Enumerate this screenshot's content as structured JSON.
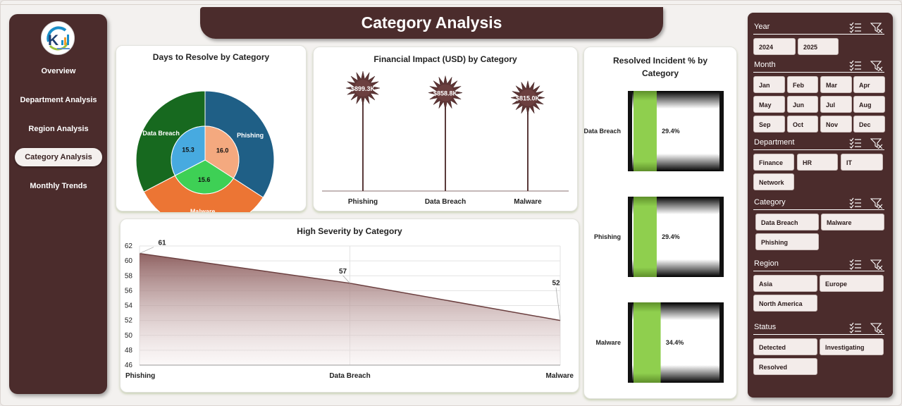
{
  "page": {
    "title": "Category Analysis"
  },
  "nav": {
    "items": [
      {
        "label": "Overview",
        "active": false
      },
      {
        "label": "Department Analysis",
        "active": false
      },
      {
        "label": "Region Analysis",
        "active": false
      },
      {
        "label": "Category Analysis",
        "active": true
      },
      {
        "label": "Monthly Trends",
        "active": false
      }
    ]
  },
  "colors": {
    "accent": "#4b2c2c",
    "panel": "#ffffff",
    "highlight": "#8fcf4e"
  },
  "charts": {
    "days_to_resolve": {
      "title": "Days to Resolve by Category",
      "chart_data": {
        "type": "pie",
        "outer": [
          {
            "label": "Phishing",
            "value": 16.0,
            "color": "#1f5f86"
          },
          {
            "label": "Malware",
            "value": 15.6,
            "color": "#ec7534"
          },
          {
            "label": "Data Breach",
            "value": 15.3,
            "color": "#17691f"
          }
        ],
        "inner": [
          {
            "label": "16.0",
            "value": 16.0,
            "color": "#f4a97f"
          },
          {
            "label": "15.6",
            "value": 15.6,
            "color": "#3ed055"
          },
          {
            "label": "15.3",
            "value": 15.3,
            "color": "#47aae0"
          }
        ]
      }
    },
    "financial_impact": {
      "title": "Financial Impact (USD) by Category",
      "chart_data": {
        "type": "bar",
        "categories": [
          "Phishing",
          "Data Breach",
          "Malware"
        ],
        "values": [
          899.3,
          858.8,
          815.0
        ],
        "labels": [
          "$899.3K",
          "$858.8K",
          "$815.0K"
        ],
        "ylim": [
          0,
          899.3
        ]
      }
    },
    "high_severity": {
      "title": "High Severity by Category",
      "chart_data": {
        "type": "area",
        "categories": [
          "Phishing",
          "Data Breach",
          "Malware"
        ],
        "values": [
          61,
          57,
          52
        ],
        "yticks": [
          "46",
          "48",
          "50",
          "52",
          "54",
          "56",
          "58",
          "60",
          "62"
        ],
        "ylim": [
          46,
          62
        ],
        "grid": true
      }
    },
    "resolved_pct": {
      "title_line1": "Resolved Incident % by",
      "title_line2": "Category",
      "chart_data": {
        "type": "bar",
        "categories": [
          "Data Breach",
          "Phishing",
          "Malware"
        ],
        "values": [
          29.4,
          29.4,
          34.4
        ],
        "labels": [
          "29.4%",
          "29.4%",
          "34.4%"
        ],
        "ylim": [
          0,
          100
        ]
      }
    }
  },
  "slicers": [
    {
      "label": "Year",
      "buttons": [
        "2024",
        "2025"
      ]
    },
    {
      "label": "Month",
      "buttons": [
        "Jan",
        "Feb",
        "Mar",
        "Apr",
        "May",
        "Jun",
        "Jul",
        "Aug",
        "Sep",
        "Oct",
        "Nov",
        "Dec"
      ]
    },
    {
      "label": "Department",
      "buttons": [
        "Finance",
        "HR",
        "IT",
        "Network"
      ]
    },
    {
      "label": "Category",
      "buttons": [
        "Data Breach",
        "Malware",
        "Phishing"
      ]
    },
    {
      "label": "Region",
      "buttons": [
        "Asia",
        "Europe",
        "North America"
      ]
    },
    {
      "label": "Status",
      "buttons": [
        "Detected",
        "Investigating",
        "Resolved"
      ]
    }
  ]
}
